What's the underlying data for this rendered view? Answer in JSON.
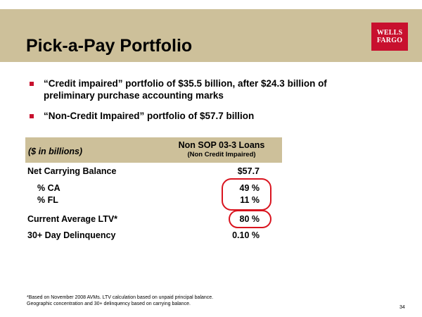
{
  "slide": {
    "title": "Pick-a-Pay Portfolio",
    "logo": {
      "line1": "WELLS",
      "line2": "FARGO"
    },
    "bullets": [
      "“Credit impaired” portfolio of $35.5 billion, after $24.3 billion of preliminary purchase accounting marks",
      "“Non-Credit Impaired” portfolio of $57.7 billion"
    ],
    "table": {
      "unit_label": "($ in billions)",
      "column_title": "Non SOP 03-3 Loans",
      "column_subtitle": "(Non Credit Impaired)",
      "rows": [
        {
          "label": "Net Carrying Balance",
          "value": "$57.7"
        },
        {
          "label": "% CA",
          "value": "49 %"
        },
        {
          "label": "% FL",
          "value": "11 %"
        },
        {
          "label": "Current Average LTV*",
          "value": "80 %"
        },
        {
          "label": "30+ Day Delinquency",
          "value": "0.10 %"
        }
      ]
    },
    "footnote": {
      "line1": "*Based on November 2008 AVMs. LTV calculation based on unpaid principal balance.",
      "line2": "Geographic concentration and 30+ delinquency based on carrying balance."
    },
    "page_number": "34",
    "colors": {
      "band": "#cdc09a",
      "accent_red": "#c8102e",
      "oval_red": "#d9141f"
    }
  }
}
